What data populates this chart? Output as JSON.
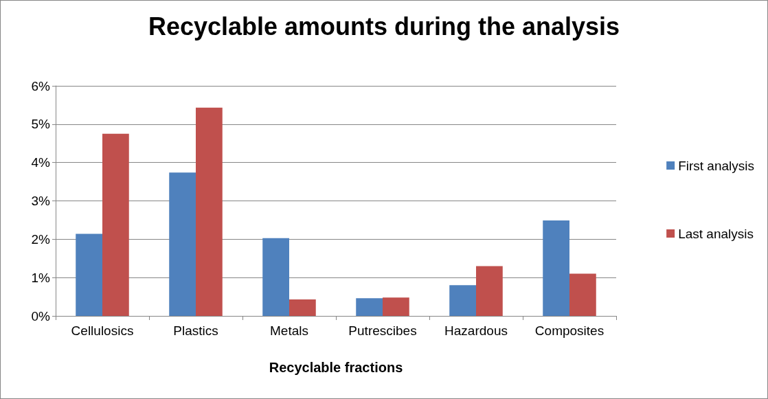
{
  "chart_data": {
    "type": "bar",
    "title": "Recyclable amounts during the analysis",
    "xlabel": "Recyclable fractions",
    "categories": [
      "Cellulosics",
      "Plastics",
      "Metals",
      "Putrescibes",
      "Hazardous",
      "Composites"
    ],
    "series": [
      {
        "name": "First analysis",
        "color": "#4f81bd",
        "values": [
          2.14,
          3.74,
          2.03,
          0.46,
          0.8,
          2.49
        ]
      },
      {
        "name": "Last analysis",
        "color": "#c0504d",
        "values": [
          4.75,
          5.43,
          0.43,
          0.48,
          1.3,
          1.1
        ]
      }
    ],
    "ylim": [
      0,
      6
    ],
    "yticks": [
      {
        "value": 0,
        "label": "0%"
      },
      {
        "value": 1,
        "label": "1%"
      },
      {
        "value": 2,
        "label": "2%"
      },
      {
        "value": 3,
        "label": "3%"
      },
      {
        "value": 4,
        "label": "4%"
      },
      {
        "value": 5,
        "label": "5%"
      },
      {
        "value": 6,
        "label": "6%"
      }
    ],
    "grid": "y",
    "legend": "right"
  }
}
